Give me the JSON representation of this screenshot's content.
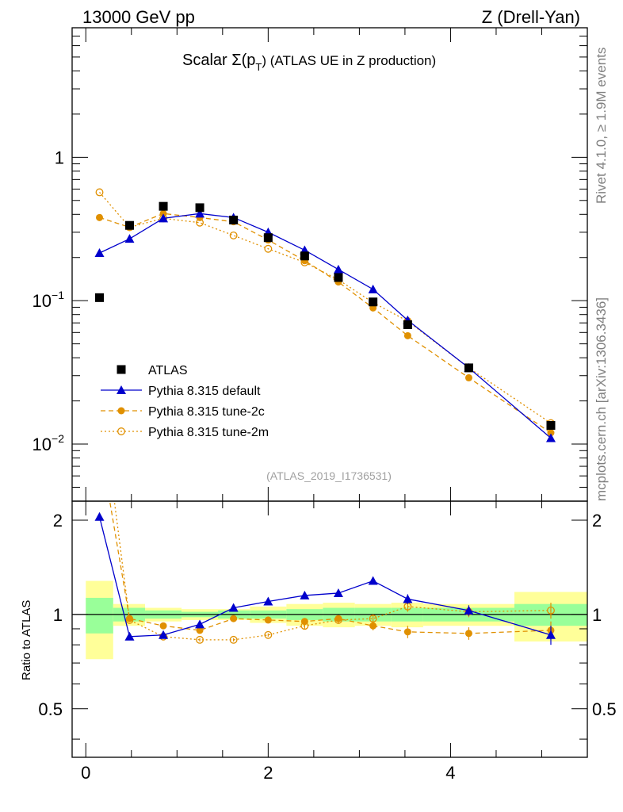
{
  "header": {
    "left": "13000 GeV pp",
    "right": "Z (Drell-Yan)"
  },
  "side": {
    "rivet": "Rivet 4.1.0, ≥ 1.9M events",
    "mcplots": "mcplots.cern.ch [arXiv:1306.3436]"
  },
  "chart_data": {
    "type": "scatter",
    "title": "Scalar Σ(p_T) (ATLAS UE in Z production)",
    "title_parts": {
      "prefix": "Scalar Σ(p",
      "sub": "T",
      "suffix": ") (ATLAS UE in Z production)"
    },
    "analysis_id": "(ATLAS_2019_I1736531)",
    "xlabel": "",
    "ylabel": "",
    "ratio_ylabel": "Ratio to ATLAS",
    "xlim": [
      -0.15,
      5.5
    ],
    "ylim": [
      0.004,
      8.0
    ],
    "yscale": "log",
    "ratio_ylim": [
      0.35,
      2.3
    ],
    "x_ticks": [
      {
        "value": 0,
        "label": "0"
      },
      {
        "value": 2,
        "label": "2"
      },
      {
        "value": 4,
        "label": "4"
      }
    ],
    "y_ticks": [
      {
        "value": 1,
        "label": "1",
        "base": "",
        "exp": ""
      },
      {
        "value": 0.1,
        "label": "",
        "base": "10",
        "exp": "−1"
      },
      {
        "value": 0.01,
        "label": "",
        "base": "10",
        "exp": "−2"
      }
    ],
    "ratio_ticks": [
      {
        "value": 2,
        "label": "2"
      },
      {
        "value": 1,
        "label": "1"
      },
      {
        "value": 0.5,
        "label": "0.5"
      }
    ],
    "x": [
      0.15,
      0.48,
      0.85,
      1.25,
      1.62,
      2.0,
      2.4,
      2.77,
      3.15,
      3.53,
      4.2,
      5.1
    ],
    "bin_edges": [
      0.0,
      0.3,
      0.65,
      1.05,
      1.45,
      1.8,
      2.2,
      2.6,
      2.95,
      3.35,
      3.7,
      4.7,
      5.5
    ],
    "band_inner": [
      0.13,
      0.05,
      0.03,
      0.02,
      0.03,
      0.03,
      0.04,
      0.05,
      0.05,
      0.05,
      0.05,
      0.08
    ],
    "band_outer": [
      0.28,
      0.08,
      0.05,
      0.04,
      0.04,
      0.06,
      0.08,
      0.09,
      0.08,
      0.09,
      0.08,
      0.18
    ],
    "series": [
      {
        "name": "ATLAS",
        "style": "data",
        "color": "#000000",
        "values": [
          0.105,
          0.335,
          0.455,
          0.445,
          0.365,
          0.275,
          0.205,
          0.145,
          0.098,
          0.068,
          0.034,
          0.0135
        ],
        "ratio": [
          1,
          1,
          1,
          1,
          1,
          1,
          1,
          1,
          1,
          1,
          1,
          1
        ]
      },
      {
        "name": "Pythia 8.315 default",
        "style": "solid",
        "marker": "triangle",
        "color": "#0000cc",
        "values": [
          0.215,
          0.27,
          0.375,
          0.405,
          0.38,
          0.3,
          0.225,
          0.165,
          0.12,
          0.073,
          0.034,
          0.011
        ],
        "ratio": [
          2.05,
          0.85,
          0.86,
          0.93,
          1.05,
          1.1,
          1.15,
          1.17,
          1.28,
          1.12,
          1.03,
          0.86
        ],
        "ratio_err": [
          0.03,
          0.01,
          0.01,
          0.01,
          0.01,
          0.01,
          0.02,
          0.02,
          0.03,
          0.04,
          0.04,
          0.06
        ]
      },
      {
        "name": "Pythia 8.315 tune-2c",
        "style": "dashed",
        "marker": "circle",
        "color": "#e09000",
        "values": [
          0.38,
          0.325,
          0.405,
          0.38,
          0.355,
          0.265,
          0.19,
          0.135,
          0.089,
          0.057,
          0.029,
          0.012
        ],
        "ratio": [
          3.6,
          0.97,
          0.92,
          0.89,
          0.97,
          0.96,
          0.95,
          0.97,
          0.92,
          0.88,
          0.87,
          0.89
        ],
        "ratio_err": [
          0.05,
          0.01,
          0.01,
          0.01,
          0.01,
          0.01,
          0.02,
          0.02,
          0.03,
          0.04,
          0.04,
          0.06
        ]
      },
      {
        "name": "Pythia 8.315 tune-2m",
        "style": "dotted",
        "marker": "open-circle",
        "color": "#e09000",
        "values": [
          0.57,
          0.325,
          0.375,
          0.35,
          0.285,
          0.23,
          0.185,
          0.14,
          0.097,
          0.072,
          0.034,
          0.014
        ],
        "ratio": [
          5.4,
          0.96,
          0.85,
          0.83,
          0.83,
          0.86,
          0.92,
          0.96,
          0.97,
          1.06,
          1.02,
          1.03
        ],
        "ratio_err": [
          0.05,
          0.01,
          0.01,
          0.01,
          0.01,
          0.01,
          0.02,
          0.02,
          0.03,
          0.04,
          0.04,
          0.06
        ]
      }
    ]
  }
}
